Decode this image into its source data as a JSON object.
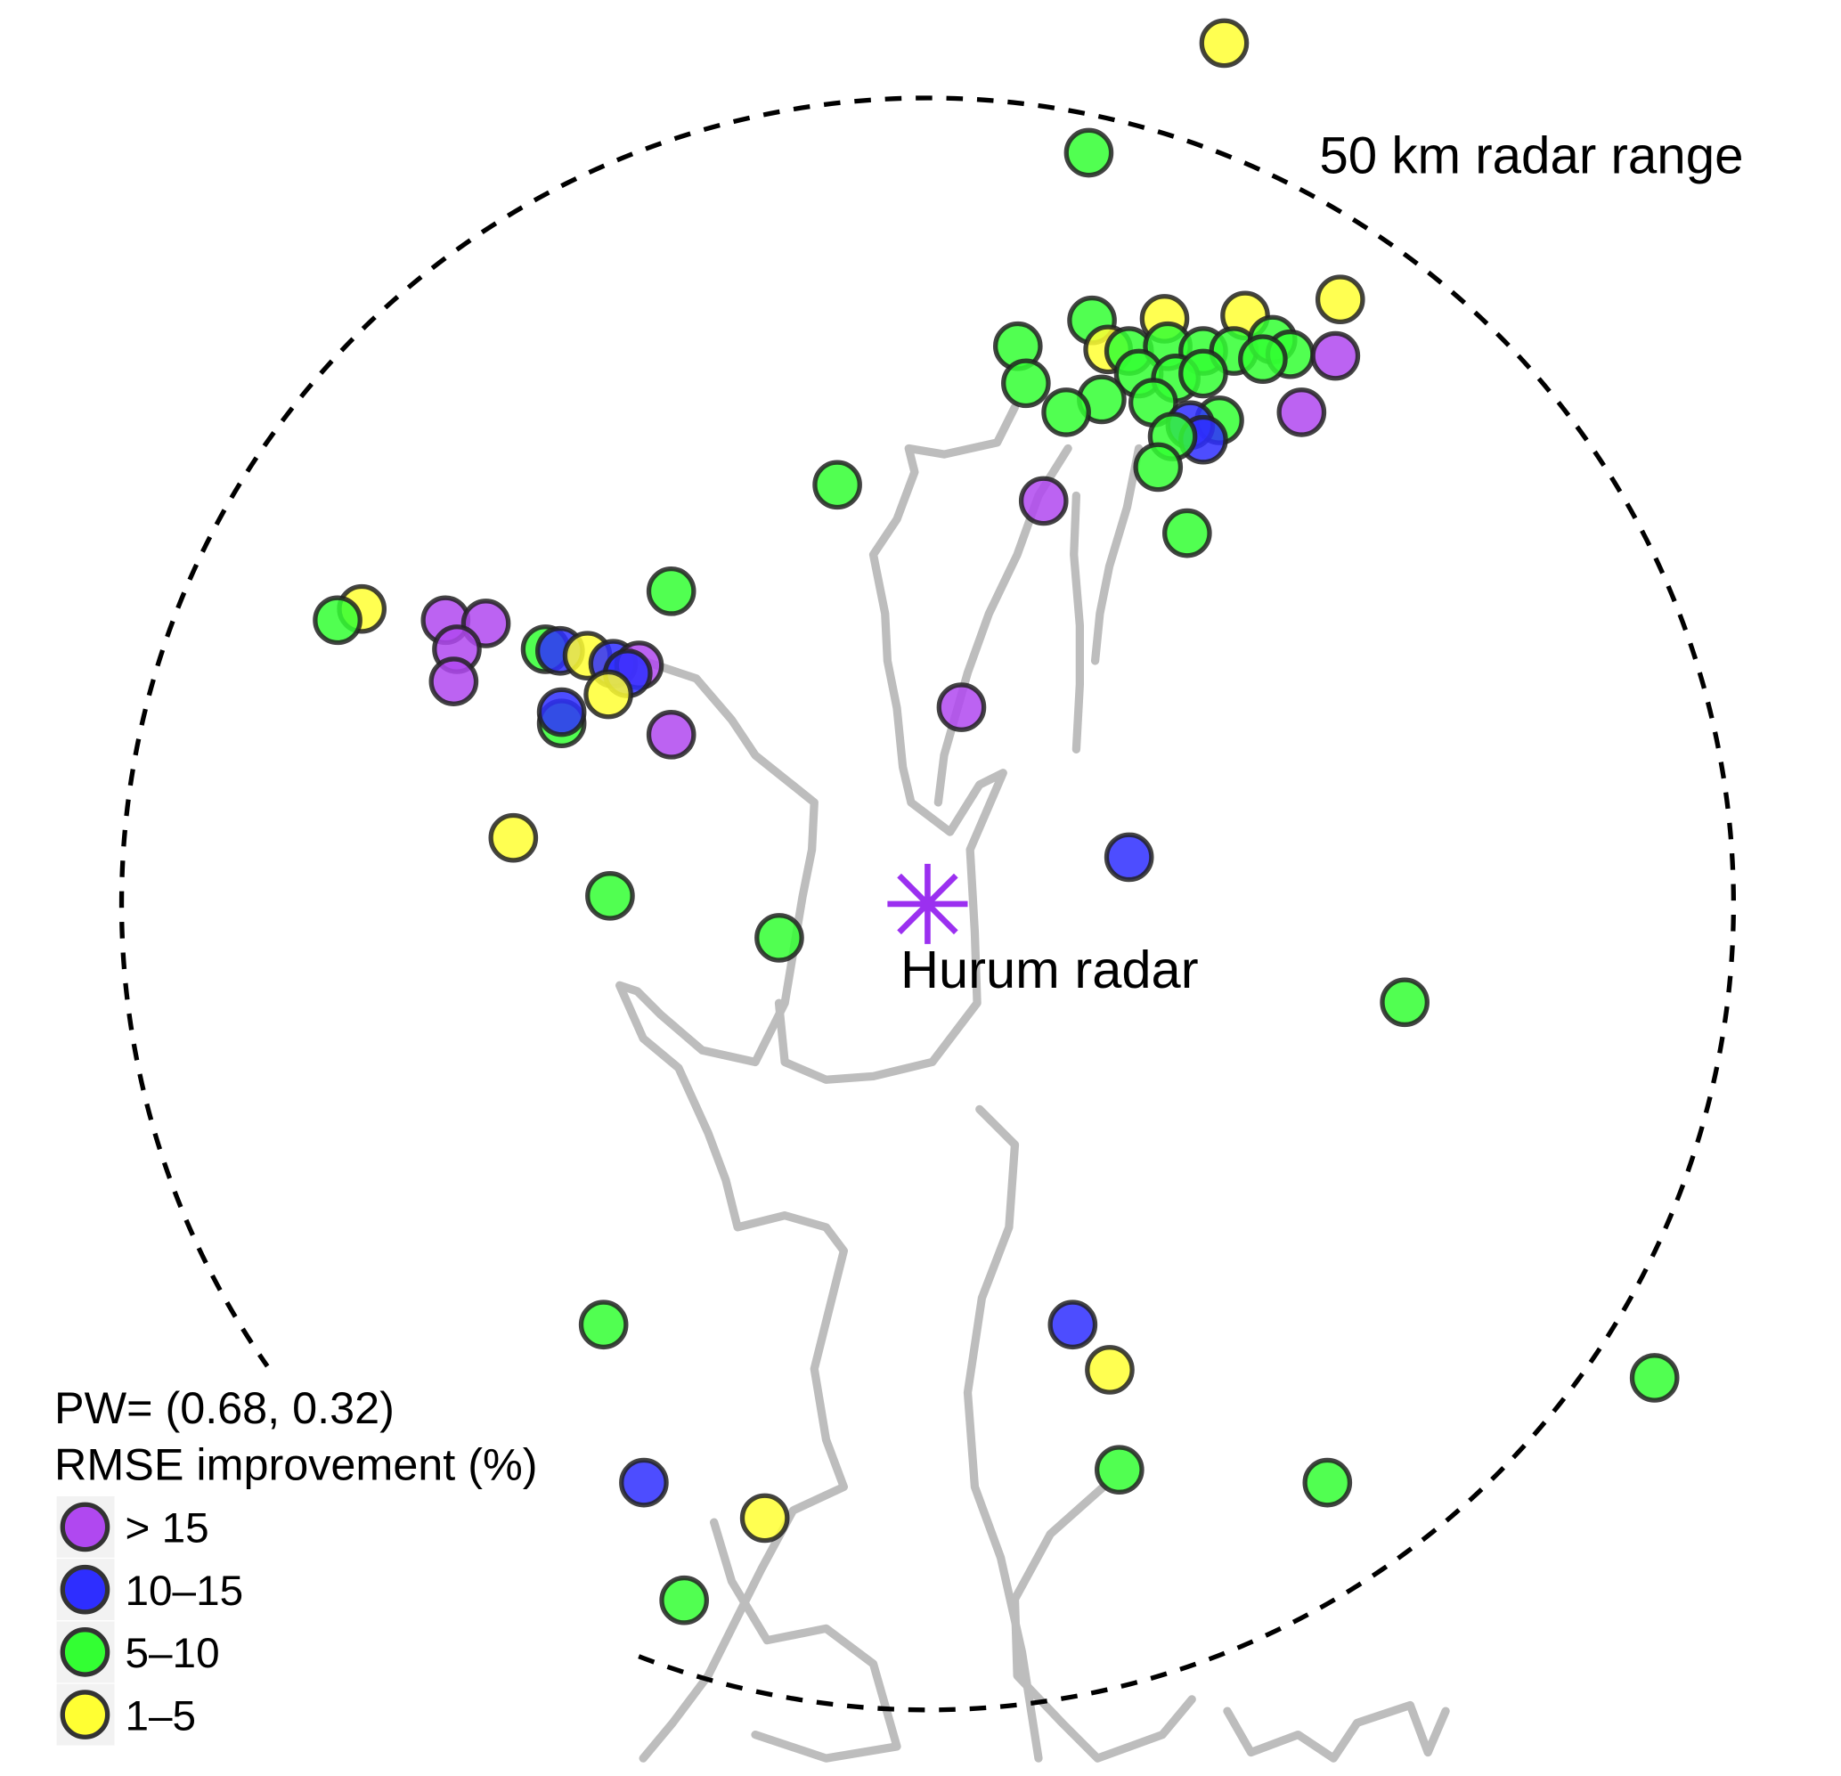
{
  "map": {
    "range_label": "50 km radar range",
    "range_km": 50,
    "radar_label": "Hurum radar",
    "radar_color": "#9B30F0",
    "coastline_color": "#bdbdbd"
  },
  "legend": {
    "title_line1": "PW= (0.68, 0.32)",
    "title_line2": "RMSE improvement (%)",
    "placement": "bottom-left",
    "items": [
      {
        "key": "p",
        "label": "> 15",
        "color": "#B048F0"
      },
      {
        "key": "b",
        "label": "10–15",
        "color": "#2E2EFF"
      },
      {
        "key": "g",
        "label": "5–10",
        "color": "#33FF33"
      },
      {
        "key": "y",
        "label": "1–5",
        "color": "#FFFF33"
      }
    ]
  },
  "chart_data": {
    "type": "scatter",
    "units": "km east / north of radar",
    "points": [
      [
        18.4,
        53.4,
        "y"
      ],
      [
        10.0,
        46.6,
        "g"
      ],
      [
        25.6,
        37.5,
        "y"
      ],
      [
        19.7,
        36.5,
        "y"
      ],
      [
        14.7,
        36.3,
        "y"
      ],
      [
        10.2,
        36.2,
        "g"
      ],
      [
        5.6,
        34.6,
        "g"
      ],
      [
        6.1,
        32.3,
        "g"
      ],
      [
        11.2,
        34.4,
        "y"
      ],
      [
        12.5,
        34.3,
        "g"
      ],
      [
        14.9,
        34.6,
        "g"
      ],
      [
        17.1,
        34.3,
        "g"
      ],
      [
        19.0,
        34.3,
        "g"
      ],
      [
        21.4,
        35.0,
        "g"
      ],
      [
        22.5,
        34.1,
        "g"
      ],
      [
        20.8,
        33.8,
        "g"
      ],
      [
        25.3,
        34.0,
        "p"
      ],
      [
        13.1,
        32.9,
        "g"
      ],
      [
        15.4,
        32.6,
        "g"
      ],
      [
        17.1,
        32.9,
        "g"
      ],
      [
        23.2,
        30.5,
        "p"
      ],
      [
        10.8,
        31.3,
        "g"
      ],
      [
        8.6,
        30.5,
        "g"
      ],
      [
        14.0,
        31.1,
        "g"
      ],
      [
        18.1,
        30.0,
        "g"
      ],
      [
        16.3,
        29.7,
        "b"
      ],
      [
        17.1,
        28.8,
        "b"
      ],
      [
        15.2,
        29.0,
        "g"
      ],
      [
        14.3,
        27.1,
        "g"
      ],
      [
        16.1,
        23.0,
        "g"
      ],
      [
        7.2,
        25.0,
        "p"
      ],
      [
        -5.6,
        26.0,
        "g"
      ],
      [
        -15.9,
        19.4,
        "g"
      ],
      [
        -35.1,
        18.3,
        "y"
      ],
      [
        -36.6,
        17.6,
        "g"
      ],
      [
        -29.9,
        17.6,
        "p"
      ],
      [
        -27.4,
        17.4,
        "p"
      ],
      [
        -29.2,
        15.8,
        "p"
      ],
      [
        -29.4,
        13.8,
        "p"
      ],
      [
        -23.7,
        15.8,
        "g"
      ],
      [
        -22.8,
        15.7,
        "b"
      ],
      [
        -21.1,
        15.4,
        "y"
      ],
      [
        -19.5,
        14.9,
        "b"
      ],
      [
        -17.9,
        14.8,
        "p"
      ],
      [
        -18.6,
        14.3,
        "b"
      ],
      [
        -19.8,
        13.0,
        "y"
      ],
      [
        -22.7,
        11.2,
        "g"
      ],
      [
        -22.7,
        11.9,
        "b"
      ],
      [
        -15.9,
        10.5,
        "p"
      ],
      [
        2.1,
        12.2,
        "p"
      ],
      [
        -25.7,
        4.1,
        "y"
      ],
      [
        -19.7,
        0.5,
        "g"
      ],
      [
        -9.2,
        -2.1,
        "g"
      ],
      [
        12.5,
        2.9,
        "b"
      ],
      [
        29.6,
        -6.1,
        "g"
      ],
      [
        -20.1,
        -26.1,
        "g"
      ],
      [
        9.0,
        -26.1,
        "b"
      ],
      [
        11.3,
        -28.9,
        "y"
      ],
      [
        45.1,
        -29.4,
        "g"
      ],
      [
        11.9,
        -35.1,
        "g"
      ],
      [
        24.8,
        -35.9,
        "g"
      ],
      [
        -17.6,
        -35.9,
        "b"
      ],
      [
        -10.1,
        -38.1,
        "y"
      ],
      [
        -15.1,
        -43.2,
        "g"
      ]
    ]
  }
}
